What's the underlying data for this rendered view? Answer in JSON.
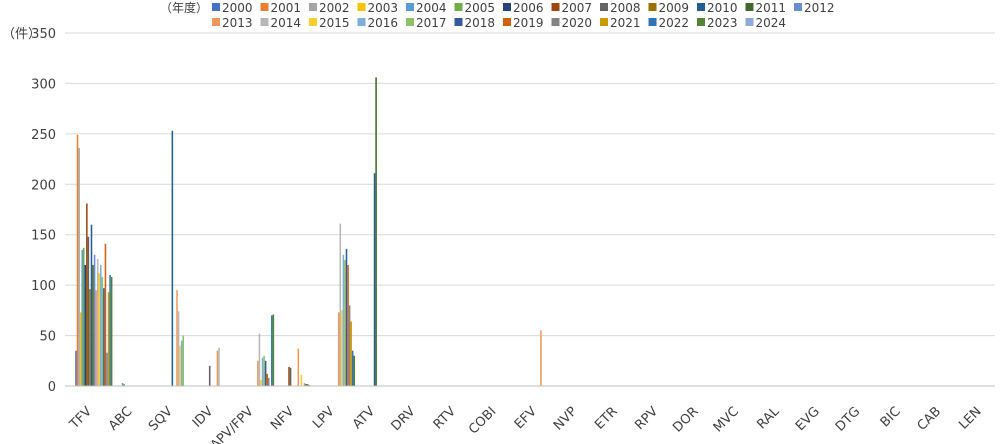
{
  "chart_data": {
    "type": "bar",
    "legend_title": "（年度）",
    "ylabel": "（件）",
    "ylim": [
      0,
      350
    ],
    "yticks": [
      0,
      50,
      100,
      150,
      200,
      250,
      300,
      350
    ],
    "grid": true,
    "legend_position": "top",
    "categories": [
      "TFV",
      "ABC",
      "SQV",
      "IDV",
      "APV/FPV",
      "NFV",
      "LPV",
      "ATV",
      "DRV",
      "RTV",
      "COBI",
      "EFV",
      "NVP",
      "ETR",
      "RPV",
      "DOR",
      "MVC",
      "RAL",
      "EVG",
      "DTG",
      "BIC",
      "CAB",
      "LEN"
    ],
    "series": [
      {
        "name": "2000",
        "color": "#4472c4",
        "values": [
          35,
          0,
          0,
          0,
          0,
          0,
          0,
          0,
          0,
          0,
          0,
          0,
          0,
          0,
          0,
          0,
          0,
          0,
          0,
          0,
          0,
          0,
          0
        ]
      },
      {
        "name": "2001",
        "color": "#ed7d31",
        "values": [
          249,
          0,
          0,
          0,
          0,
          0,
          0,
          0,
          0,
          0,
          0,
          0,
          0,
          0,
          0,
          0,
          0,
          0,
          0,
          0,
          0,
          0,
          0
        ]
      },
      {
        "name": "2002",
        "color": "#a5a5a5",
        "values": [
          236,
          0,
          0,
          0,
          0,
          0,
          0,
          0,
          0,
          0,
          0,
          0,
          0,
          0,
          0,
          0,
          0,
          0,
          0,
          0,
          0,
          0,
          0
        ]
      },
      {
        "name": "2003",
        "color": "#ffc000",
        "values": [
          73,
          0,
          0,
          0,
          0,
          0,
          0,
          0,
          0,
          0,
          0,
          0,
          0,
          0,
          0,
          0,
          0,
          0,
          0,
          0,
          0,
          0,
          0
        ]
      },
      {
        "name": "2004",
        "color": "#5b9bd5",
        "values": [
          135,
          3,
          0,
          0,
          0,
          0,
          0,
          0,
          0,
          0,
          0,
          0,
          0,
          0,
          0,
          0,
          0,
          0,
          0,
          0,
          0,
          0,
          0
        ]
      },
      {
        "name": "2005",
        "color": "#70ad47",
        "values": [
          137,
          2,
          0,
          0,
          0,
          0,
          0,
          0,
          0,
          0,
          0,
          0,
          0,
          0,
          0,
          0,
          0,
          0,
          0,
          0,
          0,
          0,
          0
        ]
      },
      {
        "name": "2006",
        "color": "#264478",
        "values": [
          120,
          0,
          0,
          0,
          0,
          0,
          0,
          0,
          0,
          0,
          0,
          0,
          0,
          0,
          0,
          0,
          0,
          0,
          0,
          0,
          0,
          0,
          0
        ]
      },
      {
        "name": "2007",
        "color": "#9e480e",
        "values": [
          181,
          0,
          0,
          0,
          0,
          19,
          0,
          0,
          0,
          0,
          0,
          0,
          0,
          0,
          0,
          0,
          0,
          0,
          0,
          0,
          0,
          0,
          0
        ]
      },
      {
        "name": "2008",
        "color": "#636363",
        "values": [
          148,
          0,
          0,
          20,
          0,
          18,
          0,
          0,
          0,
          0,
          0,
          0,
          0,
          0,
          0,
          0,
          0,
          0,
          0,
          0,
          0,
          0,
          0
        ]
      },
      {
        "name": "2009",
        "color": "#997300",
        "values": [
          96,
          0,
          0,
          0,
          0,
          0,
          0,
          0,
          0,
          0,
          0,
          0,
          0,
          0,
          0,
          0,
          0,
          0,
          0,
          0,
          0,
          0,
          0
        ]
      },
      {
        "name": "2010",
        "color": "#255e91",
        "values": [
          160,
          0,
          253,
          0,
          0,
          0,
          0,
          211,
          0,
          0,
          0,
          0,
          0,
          0,
          0,
          0,
          0,
          0,
          0,
          0,
          0,
          0,
          0
        ]
      },
      {
        "name": "2011",
        "color": "#43682b",
        "values": [
          120,
          0,
          0,
          0,
          0,
          0,
          0,
          306,
          0,
          0,
          0,
          0,
          0,
          0,
          0,
          0,
          0,
          0,
          0,
          0,
          0,
          0,
          0
        ]
      },
      {
        "name": "2012",
        "color": "#698ed0",
        "values": [
          130,
          0,
          0,
          0,
          0,
          0,
          0,
          0,
          0,
          0,
          0,
          0,
          0,
          0,
          0,
          0,
          0,
          0,
          0,
          0,
          0,
          0,
          0
        ]
      },
      {
        "name": "2013",
        "color": "#f1975a",
        "values": [
          95,
          0,
          95,
          35,
          25,
          37,
          73,
          0,
          0,
          0,
          0,
          55,
          0,
          0,
          0,
          0,
          0,
          0,
          0,
          0,
          0,
          0,
          0
        ]
      },
      {
        "name": "2014",
        "color": "#b7b7b7",
        "values": [
          126,
          0,
          74,
          38,
          52,
          0,
          161,
          0,
          0,
          0,
          0,
          0,
          0,
          0,
          0,
          0,
          0,
          0,
          0,
          0,
          0,
          0,
          0
        ]
      },
      {
        "name": "2015",
        "color": "#ffcd33",
        "values": [
          112,
          0,
          40,
          0,
          6,
          11,
          75,
          0,
          0,
          0,
          0,
          0,
          0,
          0,
          0,
          0,
          0,
          0,
          0,
          0,
          0,
          0,
          0
        ]
      },
      {
        "name": "2016",
        "color": "#7cafdd",
        "values": [
          120,
          0,
          45,
          0,
          28,
          0,
          130,
          0,
          0,
          0,
          0,
          0,
          0,
          0,
          0,
          0,
          0,
          0,
          0,
          0,
          0,
          0,
          0
        ]
      },
      {
        "name": "2017",
        "color": "#8cc168",
        "values": [
          108,
          0,
          50,
          0,
          30,
          3,
          125,
          0,
          0,
          0,
          0,
          0,
          0,
          0,
          0,
          0,
          0,
          0,
          0,
          0,
          0,
          0,
          0
        ]
      },
      {
        "name": "2018",
        "color": "#335aa1",
        "values": [
          97,
          0,
          0,
          0,
          25,
          2,
          136,
          0,
          0,
          0,
          0,
          0,
          0,
          0,
          0,
          0,
          0,
          0,
          0,
          0,
          0,
          0,
          0
        ]
      },
      {
        "name": "2019",
        "color": "#d26012",
        "values": [
          141,
          0,
          0,
          0,
          12,
          2,
          120,
          0,
          0,
          0,
          0,
          0,
          0,
          0,
          0,
          0,
          0,
          0,
          0,
          0,
          0,
          0,
          0
        ]
      },
      {
        "name": "2020",
        "color": "#848484",
        "values": [
          33,
          0,
          0,
          0,
          8,
          1,
          80,
          0,
          0,
          0,
          0,
          0,
          0,
          0,
          0,
          0,
          0,
          0,
          0,
          0,
          0,
          0,
          0
        ]
      },
      {
        "name": "2021",
        "color": "#cc9a00",
        "values": [
          93,
          0,
          0,
          0,
          0,
          0,
          64,
          0,
          0,
          0,
          0,
          0,
          0,
          0,
          0,
          0,
          0,
          0,
          0,
          0,
          0,
          0,
          0
        ]
      },
      {
        "name": "2022",
        "color": "#2e75b6",
        "values": [
          110,
          0,
          0,
          0,
          70,
          0,
          35,
          0,
          0,
          0,
          0,
          0,
          0,
          0,
          0,
          0,
          0,
          0,
          0,
          0,
          0,
          0,
          0
        ]
      },
      {
        "name": "2023",
        "color": "#548235",
        "values": [
          108,
          0,
          0,
          0,
          71,
          0,
          30,
          0,
          0,
          0,
          0,
          0,
          0,
          0,
          0,
          0,
          0,
          0,
          0,
          0,
          0,
          0,
          0
        ]
      },
      {
        "name": "2024",
        "color": "#8faadc",
        "values": [
          0,
          0,
          0,
          0,
          0,
          0,
          0,
          0,
          0,
          0,
          0,
          0,
          0,
          0,
          0,
          0,
          0,
          0,
          0,
          0,
          0,
          0,
          0
        ]
      }
    ]
  }
}
